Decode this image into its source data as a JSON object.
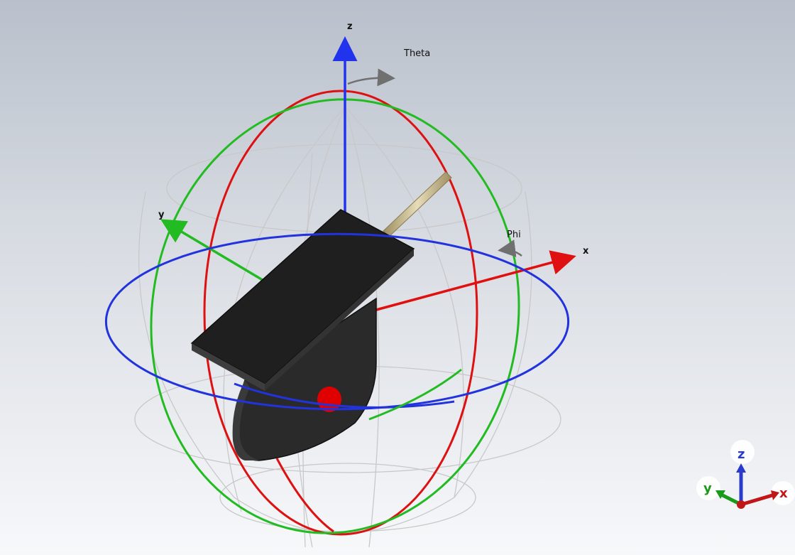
{
  "scene": {
    "axis_labels": {
      "x": "x",
      "y": "y",
      "z": "z"
    },
    "angle_labels": {
      "theta": "Theta",
      "phi": "Phi"
    },
    "colors": {
      "x_axis": "#e01010",
      "y_axis": "#22bb22",
      "z_axis": "#2233ee",
      "theta_ring": "#dd1111",
      "phi_ring": "#2233dd",
      "green_ring": "#22bb22",
      "sphere_grid": "#c8c8c8",
      "model": "#262626",
      "port_marker": "#e00000",
      "feed_probe": "#c8b88a",
      "angle_arrow": "#707070"
    }
  },
  "orientation_triad": {
    "labels": {
      "x": "x",
      "y": "y",
      "z": "z"
    },
    "colors": {
      "x": "#c01818",
      "y": "#1a9a1a",
      "z": "#2a3acc"
    }
  }
}
